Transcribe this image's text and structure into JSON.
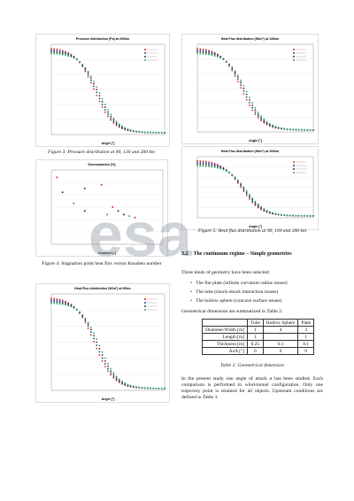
{
  "figures": [
    {
      "title": "Pressure distribution (Pa) at 200km",
      "xlabel": "Angle [°]"
    },
    {
      "title": "Discrepancies [%]",
      "xlabel": "Knudsen [-]"
    },
    {
      "title": "Heat Flux distribution (W/m²) at 90km",
      "xlabel": "Angle [°]"
    },
    {
      "title": "Heat Flux distribution (W/m²) at 130km",
      "xlabel": "Angle [°]"
    },
    {
      "title": "Heat Flux distribution (W/m²) at 200km",
      "xlabel": "Angle [°]"
    }
  ],
  "captions": {
    "fig3": "Figure 3: Pressure distribution at 90, 130 and 200 km",
    "fig4": "Figure 4: Stagnation point heat flux versus Knudsen number",
    "fig5": "Figure 5: Heat flux distribution at 90, 130 and 200 km",
    "table2": "Table 2: Geometrical dimension"
  },
  "watermark": "esa",
  "section": {
    "number": "3.2",
    "title": "The continuum regime – Simple geometries"
  },
  "paragraphs": [
    "Three kinds of geometry have been selected:",
    "Geometrical dimension are summarized in Table 2.",
    "In the present study one angle of attack α has been studied. Each comparison is performed in wind-tunnel configuration. Only one trajectory point is retained for all objects. Upstream conditions are defined in Table 3."
  ],
  "bullets": [
    "The flat plate (infinite curvature radius issues)",
    "The tube (shock-shock interaction issues)",
    "The hollow sphere (concave surface issues)"
  ],
  "table": {
    "header": [
      "",
      "Tube",
      "Hollow Sphere",
      "Plate"
    ],
    "rows": [
      [
        "Diameter/Width [m]",
        "1",
        "4",
        "3"
      ],
      [
        "Length [m]",
        "1",
        "",
        "1"
      ],
      [
        "Thickness [m]",
        "0.25",
        "0.1",
        "0.1"
      ],
      [
        "AoA [°]",
        "0",
        "0",
        "0"
      ]
    ]
  }
}
